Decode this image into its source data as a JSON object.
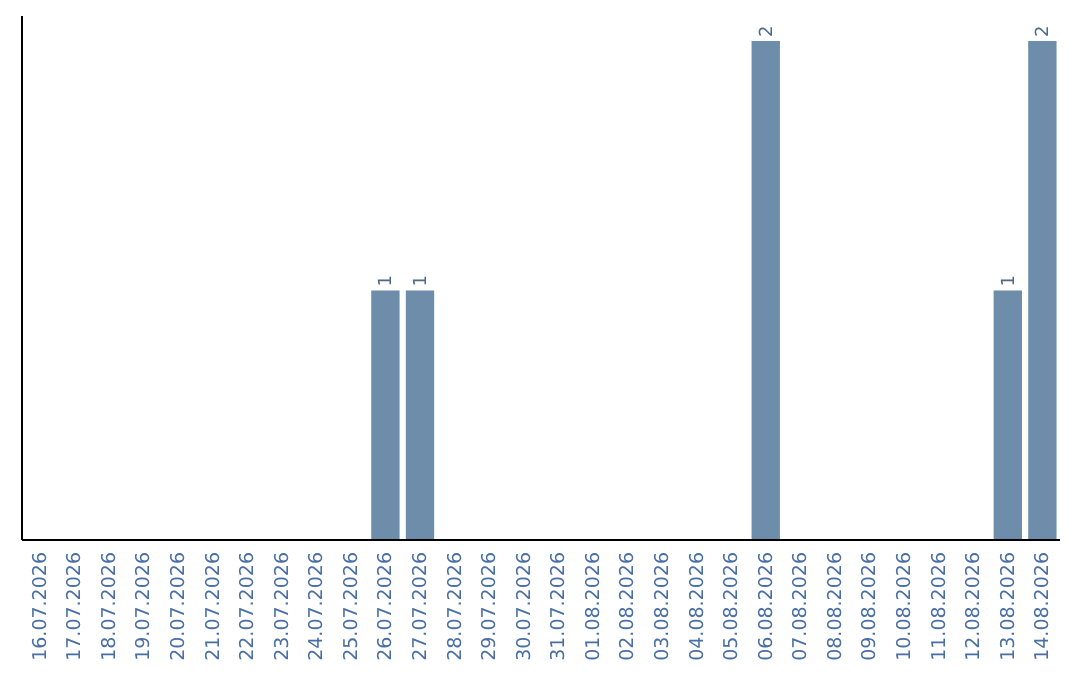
{
  "chart_data": {
    "type": "bar",
    "categories": [
      "16.07.2026",
      "17.07.2026",
      "18.07.2026",
      "19.07.2026",
      "20.07.2026",
      "21.07.2026",
      "22.07.2026",
      "23.07.2026",
      "24.07.2026",
      "25.07.2026",
      "26.07.2026",
      "27.07.2026",
      "28.07.2026",
      "29.07.2026",
      "30.07.2026",
      "31.07.2026",
      "01.08.2026",
      "02.08.2026",
      "03.08.2026",
      "04.08.2026",
      "05.08.2026",
      "06.08.2026",
      "07.08.2026",
      "08.08.2026",
      "09.08.2026",
      "10.08.2026",
      "11.08.2026",
      "12.08.2026",
      "13.08.2026",
      "14.08.2026"
    ],
    "values": [
      0,
      0,
      0,
      0,
      0,
      0,
      0,
      0,
      0,
      0,
      1,
      1,
      0,
      0,
      0,
      0,
      0,
      0,
      0,
      0,
      0,
      2,
      0,
      0,
      0,
      0,
      0,
      0,
      1,
      2
    ],
    "value_labels": [
      null,
      null,
      null,
      null,
      null,
      null,
      null,
      null,
      null,
      null,
      "1",
      "1",
      null,
      null,
      null,
      null,
      null,
      null,
      null,
      null,
      null,
      "2",
      null,
      null,
      null,
      null,
      null,
      null,
      "1",
      "2"
    ],
    "color": "#6d8dab",
    "ylim": [
      0,
      2.1
    ],
    "tick_labels": "x"
  }
}
